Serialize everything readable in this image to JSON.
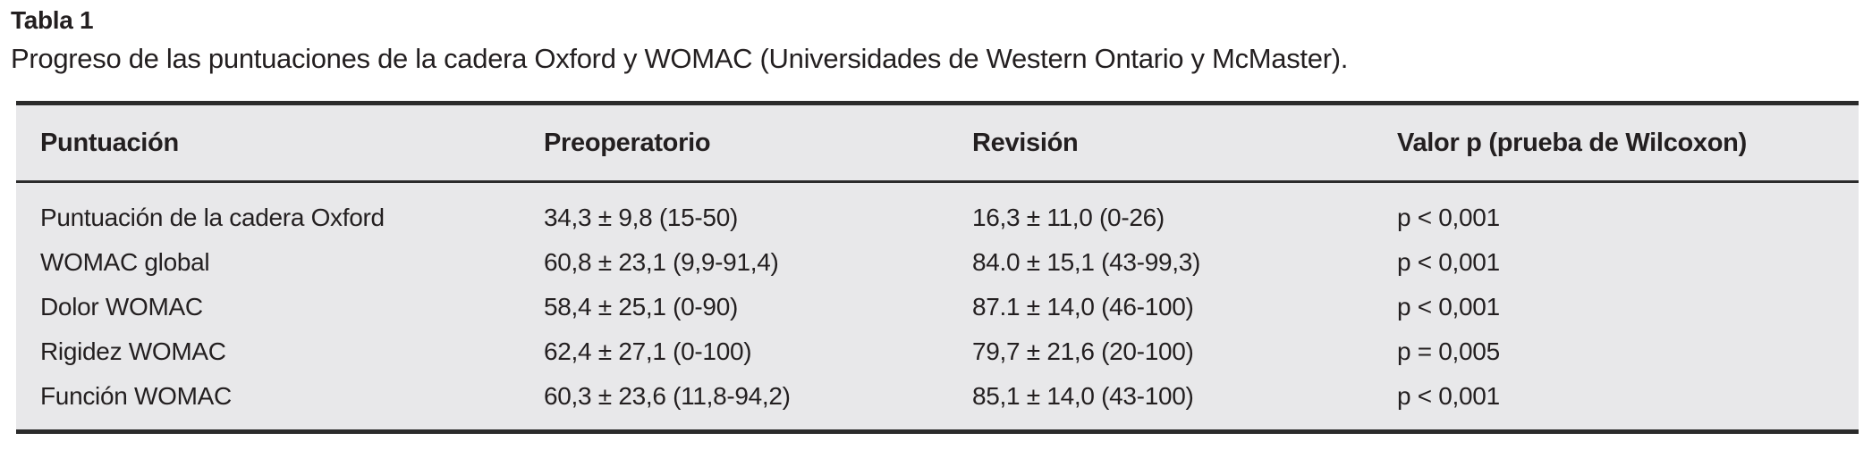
{
  "caption": {
    "label": "Tabla 1",
    "description": "Progreso de las puntuaciones de la cadera Oxford y WOMAC (Universidades de Western Ontario y McMaster)."
  },
  "table": {
    "columns": [
      "Puntuación",
      "Preoperatorio",
      "Revisión",
      "Valor p (prueba de Wilcoxon)"
    ],
    "rows": [
      {
        "puntuacion": "Puntuación de la cadera Oxford",
        "preoperatorio": "34,3 ± 9,8 (15-50)",
        "revision": "16,3 ± 11,0 (0-26)",
        "valor_p": "p < 0,001"
      },
      {
        "puntuacion": "WOMAC global",
        "preoperatorio": "60,8 ± 23,1 (9,9-91,4)",
        "revision": "84.0 ± 15,1 (43-99,3)",
        "valor_p": "p < 0,001"
      },
      {
        "puntuacion": "Dolor WOMAC",
        "preoperatorio": "58,4 ± 25,1 (0-90)",
        "revision": "87.1 ± 14,0 (46-100)",
        "valor_p": "p < 0,001"
      },
      {
        "puntuacion": "Rigidez WOMAC",
        "preoperatorio": "62,4 ± 27,1 (0-100)",
        "revision": "79,7 ± 21,6 (20-100)",
        "valor_p": "p = 0,005"
      },
      {
        "puntuacion": "Función WOMAC",
        "preoperatorio": "60,3 ± 23,6 (11,8-94,2)",
        "revision": "85,1 ± 14,0 (43-100)",
        "valor_p": "p < 0,001"
      }
    ]
  },
  "colors": {
    "table_background": "#e8e8ea",
    "rule": "#2b2b2b",
    "text": "#231f20"
  }
}
